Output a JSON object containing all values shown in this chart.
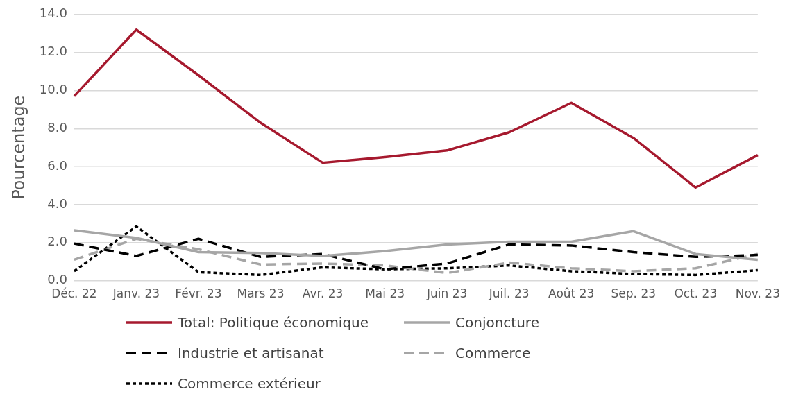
{
  "chart_data": {
    "type": "line",
    "ylabel": "Pourcentage",
    "categories": [
      "Déc. 22",
      "Janv. 23",
      "Févr. 23",
      "Mars 23",
      "Avr. 23",
      "Mai 23",
      "Juin 23",
      "Juil. 23",
      "Août 23",
      "Sep. 23",
      "Oct. 23",
      "Nov. 23"
    ],
    "series": [
      {
        "name": "Total: Politique économique",
        "color": "#a6192e",
        "line_style": "solid",
        "values": [
          9.7,
          13.2,
          10.8,
          8.3,
          6.2,
          6.5,
          6.85,
          7.8,
          9.35,
          7.5,
          4.9,
          6.6
        ]
      },
      {
        "name": "Conjoncture",
        "color": "#a6a6a6",
        "line_style": "solid",
        "values": [
          2.65,
          2.25,
          1.5,
          1.45,
          1.3,
          1.55,
          1.9,
          2.05,
          2.05,
          2.6,
          1.4,
          1.1
        ]
      },
      {
        "name": "Industrie et artisanat",
        "color": "#000000",
        "line_style": "dashed",
        "values": [
          1.95,
          1.3,
          2.2,
          1.25,
          1.4,
          0.6,
          0.9,
          1.9,
          1.85,
          1.5,
          1.25,
          1.35
        ]
      },
      {
        "name": "Commerce",
        "color": "#a6a6a6",
        "line_style": "dashed",
        "values": [
          1.1,
          2.2,
          1.65,
          0.85,
          0.9,
          0.8,
          0.4,
          0.95,
          0.65,
          0.5,
          0.65,
          1.4
        ]
      },
      {
        "name": "Commerce extérieur",
        "color": "#000000",
        "line_style": "dotted",
        "values": [
          0.5,
          2.85,
          0.45,
          0.3,
          0.7,
          0.6,
          0.65,
          0.8,
          0.5,
          0.35,
          0.3,
          0.55
        ]
      }
    ],
    "ylim": [
      0,
      14
    ],
    "yticks": [
      {
        "value": 0,
        "label": "0.0"
      },
      {
        "value": 2,
        "label": "2.0"
      },
      {
        "value": 4,
        "label": "4.0"
      },
      {
        "value": 6,
        "label": "6.0"
      },
      {
        "value": 8,
        "label": "8.0"
      },
      {
        "value": 10,
        "label": "10.0"
      },
      {
        "value": 12,
        "label": "12.0"
      },
      {
        "value": 14,
        "label": "14.0"
      }
    ],
    "grid": "y",
    "legend": "bottom",
    "marker": "none"
  }
}
